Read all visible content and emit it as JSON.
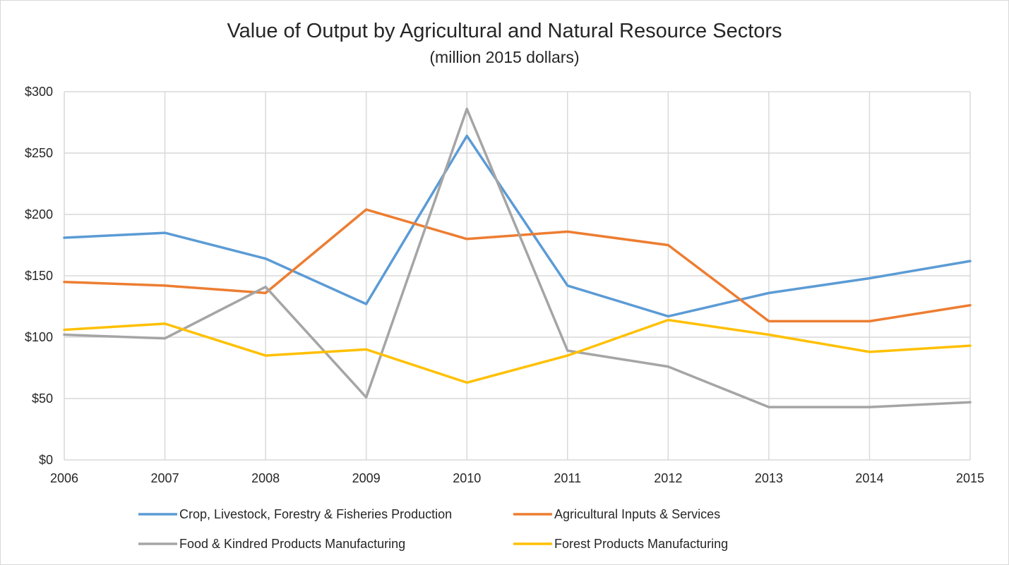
{
  "chart_data": {
    "type": "line",
    "title": "Value of Output by Agricultural and Natural Resource Sectors",
    "subtitle": "(million 2015 dollars)",
    "xlabel": "",
    "ylabel": "",
    "categories": [
      "2006",
      "2007",
      "2008",
      "2009",
      "2010",
      "2011",
      "2012",
      "2013",
      "2014",
      "2015"
    ],
    "yticks": [
      "$0",
      "$50",
      "$100",
      "$150",
      "$200",
      "$250",
      "$300"
    ],
    "ylim": [
      0,
      300
    ],
    "grid": true,
    "legend_position": "bottom",
    "series": [
      {
        "name": "Crop, Livestock, Forestry & Fisheries Production",
        "color": "#5b9bd5",
        "values": [
          181,
          185,
          164,
          127,
          264,
          142,
          117,
          136,
          148,
          162
        ]
      },
      {
        "name": "Agricultural Inputs & Services",
        "color": "#ed7d31",
        "values": [
          145,
          142,
          136,
          204,
          180,
          186,
          175,
          113,
          113,
          126
        ]
      },
      {
        "name": "Food & Kindred Products Manufacturing",
        "color": "#a5a5a5",
        "values": [
          102,
          99,
          141,
          51,
          286,
          89,
          76,
          43,
          43,
          47
        ]
      },
      {
        "name": "Forest Products Manufacturing",
        "color": "#ffc000",
        "values": [
          106,
          111,
          85,
          90,
          63,
          85,
          114,
          102,
          88,
          93
        ]
      }
    ]
  }
}
